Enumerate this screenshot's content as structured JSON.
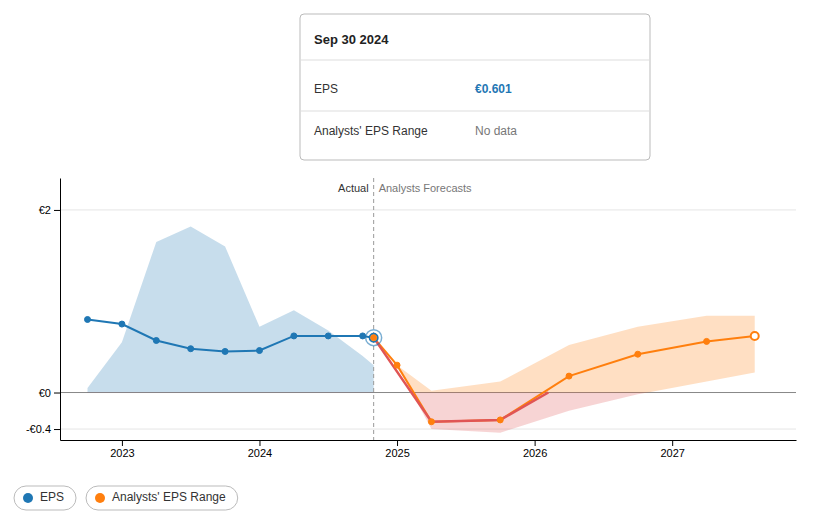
{
  "chart_data": {
    "type": "line",
    "xlim": [
      2022.55,
      2027.9
    ],
    "ylim": [
      -0.52,
      2.35
    ],
    "xticks": [
      2023,
      2024,
      2025,
      2026,
      2027
    ],
    "yticks": [
      {
        "value": -0.4,
        "label": "-€0.4"
      },
      {
        "value": 0,
        "label": "€0"
      },
      {
        "value": 2,
        "label": "€2"
      }
    ],
    "grid": true,
    "legend": "lower left",
    "series": [
      {
        "name": "EPS",
        "marker": "circle",
        "x": [
          2022.75,
          2023.0,
          2023.25,
          2023.5,
          2023.75,
          2024.0,
          2024.25,
          2024.5,
          2024.75,
          2024.83
        ],
        "values": [
          0.8,
          0.75,
          0.57,
          0.48,
          0.45,
          0.46,
          0.62,
          0.62,
          0.62,
          0.601
        ],
        "lower": [
          0.0,
          0.0,
          0.0,
          0.0,
          0.0,
          0.0,
          0.0,
          0.0,
          0.0,
          0.0
        ],
        "upper": [
          0.05,
          0.55,
          1.65,
          1.82,
          1.6,
          0.72,
          0.9,
          0.68,
          0.4,
          0.3
        ]
      },
      {
        "name": "Analysts' EPS Range",
        "marker": "circle",
        "x": [
          2024.83,
          2025.0,
          2025.25,
          2025.75,
          2026.25,
          2026.75,
          2027.25,
          2027.6
        ],
        "values": [
          0.601,
          0.3,
          -0.32,
          -0.3,
          0.18,
          0.42,
          0.56,
          0.62
        ],
        "lower": [
          0.601,
          0.3,
          -0.4,
          -0.44,
          -0.2,
          -0.02,
          0.12,
          0.22
        ],
        "upper": [
          0.601,
          0.3,
          0.02,
          0.12,
          0.52,
          0.72,
          0.84,
          0.84
        ]
      },
      {
        "color": "#e05555",
        "x": [
          2024.83,
          2025.25,
          2025.75,
          2026.1
        ],
        "values": [
          0.601,
          -0.32,
          -0.3,
          0.0
        ]
      }
    ],
    "divider": {
      "x": 2024.83,
      "labels": [
        "Actual",
        "Analysts Forecasts"
      ]
    },
    "tooltip": {
      "title": "Sep 30 2024",
      "x": 2024.83,
      "values": [
        0.601,
        null
      ],
      "value_labels": [
        "€0.601",
        "No data"
      ]
    }
  }
}
